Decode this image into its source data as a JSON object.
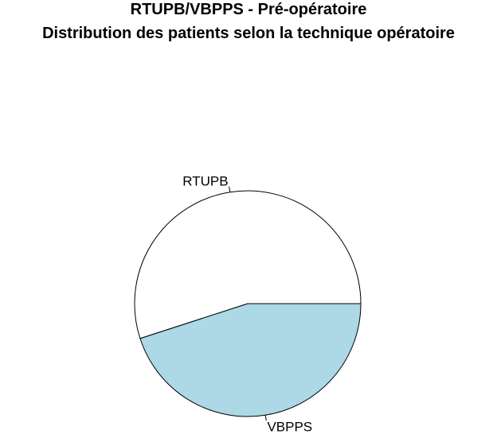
{
  "chart_data": {
    "type": "pie",
    "title": "RTUPB/VBPPS - Pré-opératoire",
    "subtitle": "Distribution des patients selon la technique opératoire",
    "categories": [
      "RTUPB",
      "VBPPS"
    ],
    "values": [
      55,
      45
    ],
    "colors": [
      "#ffffff",
      "#add8e6"
    ],
    "start_angle_deg": 0,
    "direction": "counterclockwise",
    "legend": "none"
  }
}
